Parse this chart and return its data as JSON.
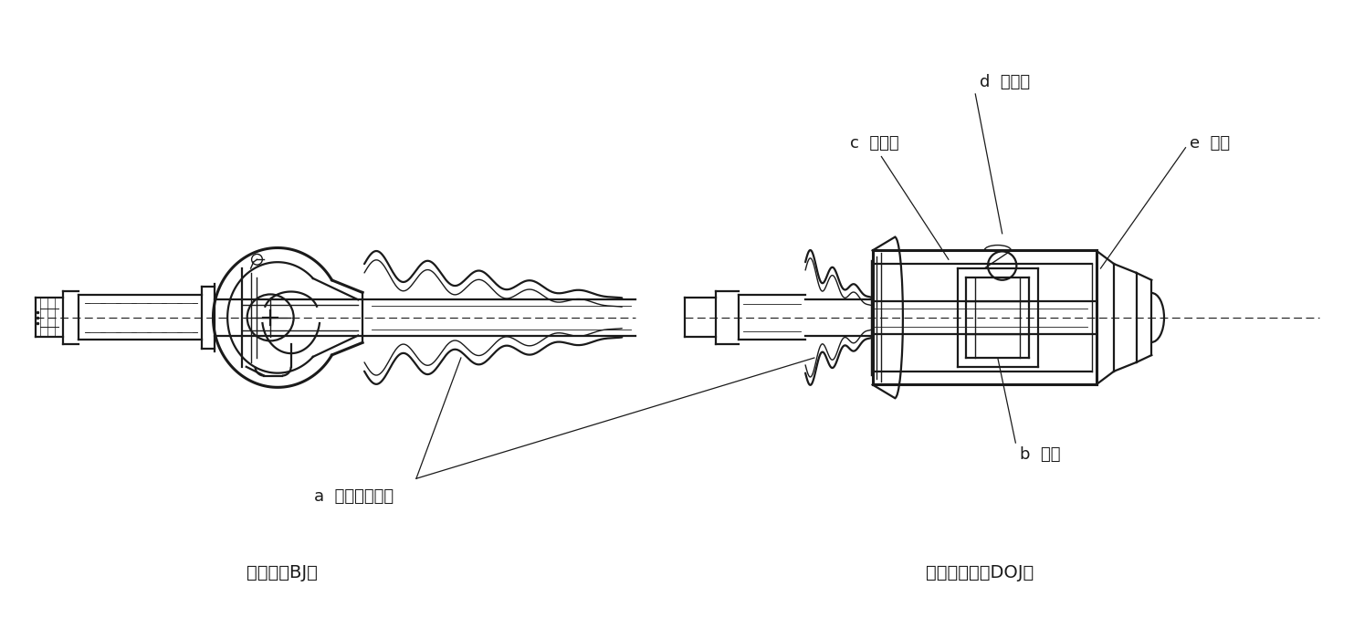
{
  "figure_width": 14.83,
  "figure_height": 6.88,
  "dpi": 100,
  "bg_color": "#ffffff",
  "line_color": "#1a1a1a",
  "title_left": "固定式（BJ）",
  "title_right": "しゅう動式（DOJ）",
  "label_a": "a  ダストブーツ",
  "label_b": "b  内輪",
  "label_c": "c  ケージ",
  "label_d": "d  ボール",
  "label_e": "e  外輪"
}
